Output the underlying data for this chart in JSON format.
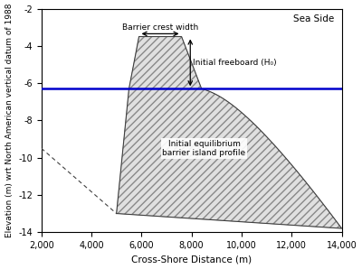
{
  "xlim": [
    2000,
    14000
  ],
  "ylim": [
    -14,
    -2
  ],
  "xlabel": "Cross-Shore Distance (m)",
  "ylabel": "Elevation (m) wrt North American vertical datum of 1988",
  "sea_side_label": "Sea Side",
  "sea_level": -6.3,
  "barrier_crest_top_left_x": 5900,
  "barrier_crest_top_right_x": 7600,
  "barrier_crest_top_y": -3.5,
  "barrier_base_left_x": 5500,
  "barrier_base_right_x": 8400,
  "barrier_base_y": -6.3,
  "right_curve_mid_x": 9500,
  "right_curve_mid_y": -7.5,
  "barrier_tail_right_x": 14000,
  "barrier_tail_right_y": -13.8,
  "poly_bottom_left_x": 5000,
  "poly_bottom_left_y": -13.0,
  "dashed_line_x1": 2000,
  "dashed_line_y1": -9.5,
  "dashed_line_x2": 5000,
  "dashed_line_y2": -13.0,
  "hatch_pattern": "////",
  "fill_color": "#e0e0e0",
  "line_color": "#404040",
  "sea_level_color": "#0000cc",
  "annotation_barrier_crest_text": "Barrier crest width",
  "annotation_freeboard_text": "Initial freeboard (H₀)",
  "annotation_profile_text": "Initial equilibrium\nbarrier island profile",
  "xticks": [
    2000,
    4000,
    6000,
    8000,
    10000,
    12000,
    14000
  ],
  "yticks": [
    -14,
    -12,
    -10,
    -8,
    -6,
    -4,
    -2
  ],
  "background_color": "#ffffff"
}
